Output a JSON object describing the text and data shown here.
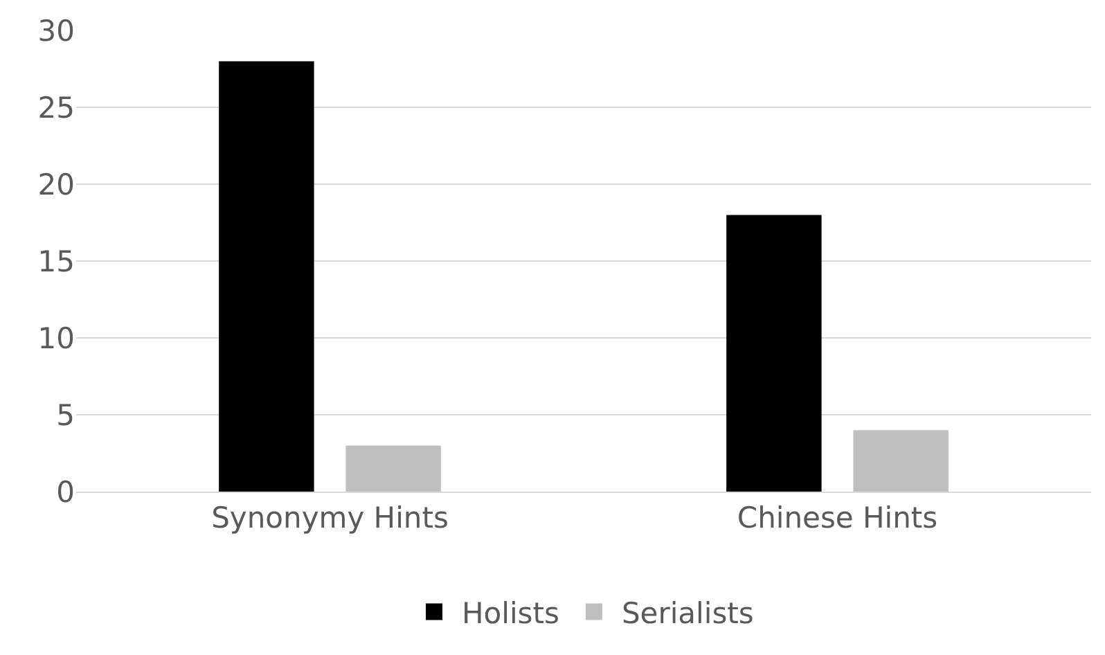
{
  "chart_data": {
    "type": "bar",
    "categories": [
      "Synonymy Hints",
      "Chinese Hints"
    ],
    "series": [
      {
        "name": "Holists",
        "color": "#000000",
        "values": [
          28,
          18
        ]
      },
      {
        "name": "Serialists",
        "color": "#bfbfbf",
        "values": [
          3,
          4
        ]
      }
    ],
    "ylim": [
      0,
      30
    ],
    "yticks": [
      0,
      5,
      10,
      15,
      20,
      25,
      30
    ],
    "grid": "y",
    "legend": "bottom"
  }
}
